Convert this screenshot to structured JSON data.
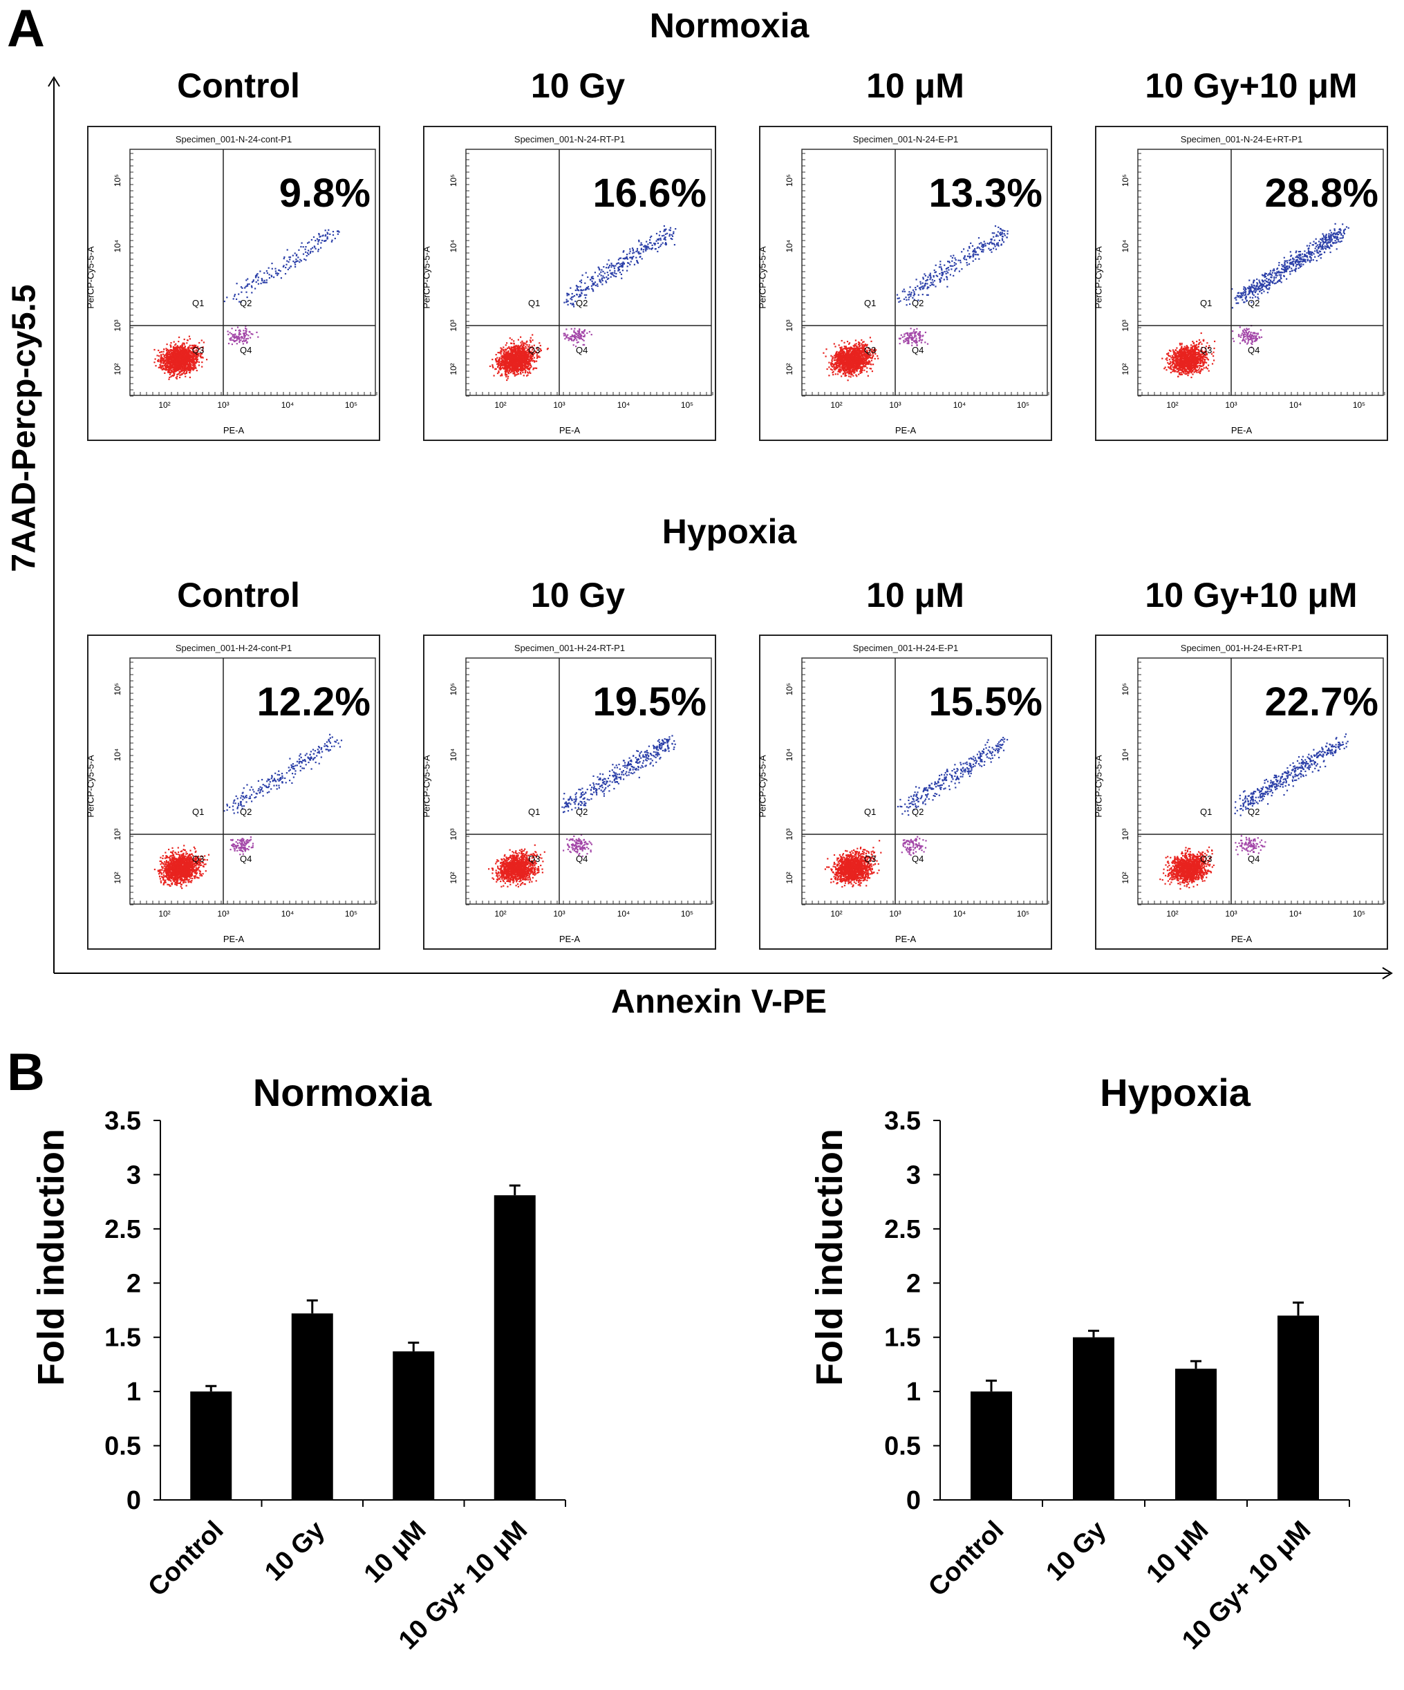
{
  "panel_a": {
    "label": "A",
    "y_axis_title": "7AAD-Percp-cy5.5",
    "x_axis_title": "Annexin V-PE",
    "columns": [
      "Control",
      "10 Gy",
      "10 μM",
      "10 Gy+10 μM"
    ],
    "rows": [
      {
        "title": "Normoxia",
        "plots": [
          {
            "specimen": "Specimen_001-N-24-cont-P1",
            "percent": "9.8%"
          },
          {
            "specimen": "Specimen_001-N-24-RT-P1",
            "percent": "16.6%"
          },
          {
            "specimen": "Specimen_001-N-24-E-P1",
            "percent": "13.3%"
          },
          {
            "specimen": "Specimen_001-N-24-E+RT-P1",
            "percent": "28.8%"
          }
        ]
      },
      {
        "title": "Hypoxia",
        "plots": [
          {
            "specimen": "Specimen_001-H-24-cont-P1",
            "percent": "12.2%"
          },
          {
            "specimen": "Specimen_001-H-24-RT-P1",
            "percent": "19.5%"
          },
          {
            "specimen": "Specimen_001-H-24-E-P1",
            "percent": "15.5%"
          },
          {
            "specimen": "Specimen_001-H-24-E+RT-P1",
            "percent": "22.7%"
          }
        ]
      }
    ],
    "flow_axis": {
      "x_label": "PE-A",
      "y_label": "PerCP-Cy5-5-A",
      "quadrants": [
        "Q1",
        "Q2",
        "Q3",
        "Q4"
      ],
      "ticks": [
        "10²",
        "10³",
        "10⁴",
        "10⁵"
      ]
    },
    "colors": {
      "live": "#e8231f",
      "apoptotic": "#2b3fa8",
      "mid": "#a347a8"
    }
  },
  "panel_b": {
    "label": "B"
  },
  "chart_data": [
    {
      "type": "bar",
      "title": "Normoxia",
      "ylabel": "Fold induction",
      "xlabel": "",
      "categories": [
        "Control",
        "10 Gy",
        "10 μM",
        "10 Gy+ 10 μM"
      ],
      "values": [
        1.0,
        1.72,
        1.37,
        2.81
      ],
      "errors": [
        0.05,
        0.12,
        0.08,
        0.09
      ],
      "ylim": [
        0,
        3.5
      ],
      "yticks": [
        "0",
        "0.5",
        "1",
        "1.5",
        "2",
        "2.5",
        "3",
        "3.5"
      ],
      "color": "#000000"
    },
    {
      "type": "bar",
      "title": "Hypoxia",
      "ylabel": "Fold induction",
      "xlabel": "",
      "categories": [
        "Control",
        "10 Gy",
        "10 μM",
        "10 Gy+ 10 μM"
      ],
      "values": [
        1.0,
        1.5,
        1.21,
        1.7
      ],
      "errors": [
        0.1,
        0.06,
        0.07,
        0.12
      ],
      "ylim": [
        0,
        3.5
      ],
      "yticks": [
        "0",
        "0.5",
        "1",
        "1.5",
        "2",
        "2.5",
        "3",
        "3.5"
      ],
      "color": "#000000"
    }
  ]
}
